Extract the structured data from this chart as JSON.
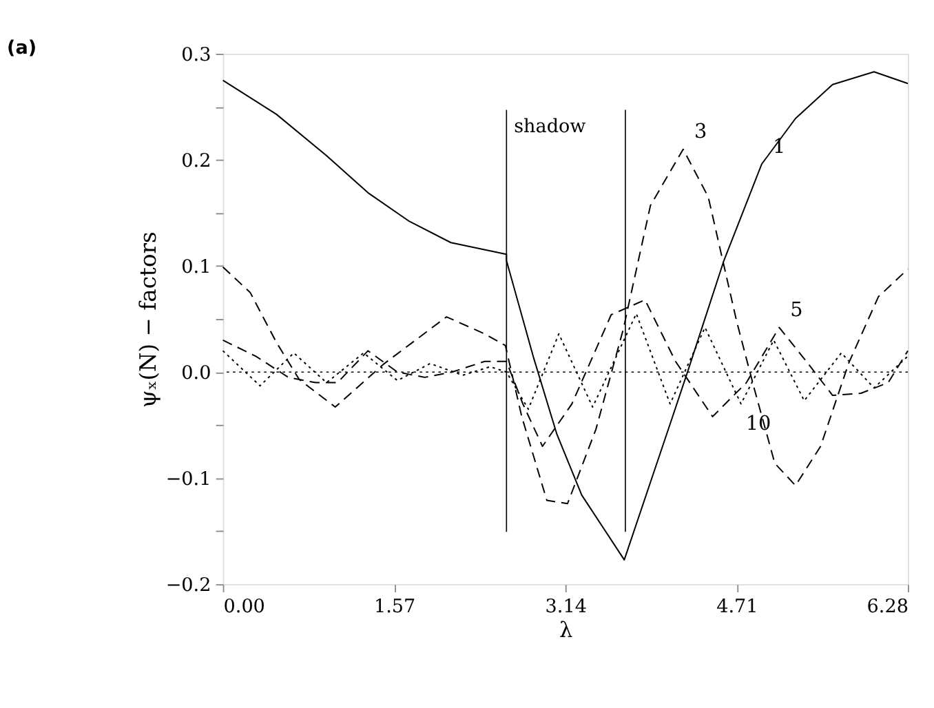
{
  "chart_data": {
    "type": "line",
    "title": "(a)",
    "xlabel": "λ",
    "ylabel": "ψₓ(N) − factors",
    "xlim": [
      0,
      6.28
    ],
    "ylim": [
      -0.2,
      0.3
    ],
    "xticks": [
      {
        "value": 0,
        "label": "0.00"
      },
      {
        "value": 1.57,
        "label": "1.57"
      },
      {
        "value": 3.14,
        "label": "3.14"
      },
      {
        "value": 4.71,
        "label": "4.71"
      },
      {
        "value": 6.28,
        "label": "6.28"
      }
    ],
    "yticks": [
      {
        "value": -0.2,
        "label": "−0.2"
      },
      {
        "value": -0.15,
        "label": null
      },
      {
        "value": -0.1,
        "label": "−0.1"
      },
      {
        "value": -0.05,
        "label": null
      },
      {
        "value": 0,
        "label": "0.0"
      },
      {
        "value": 0.05,
        "label": null
      },
      {
        "value": 0.1,
        "label": "0.1"
      },
      {
        "value": 0.15,
        "label": null
      },
      {
        "value": 0.2,
        "label": "0.2"
      },
      {
        "value": 0.25,
        "label": null
      },
      {
        "value": 0.3,
        "label": "0.3"
      }
    ],
    "grid": false,
    "series": [
      {
        "color": "#000000",
        "line_style": "solid",
        "x": [
          0,
          0.49,
          0.95,
          1.33,
          1.71,
          2.09,
          2.6,
          2.6,
          2.85,
          3.06,
          3.29,
          3.68,
          4.11,
          4.26,
          4.59,
          4.94,
          5.25,
          5.59,
          5.97,
          6.28
        ],
        "values": [
          0.275,
          0.243,
          0.204,
          0.169,
          0.142,
          0.122,
          0.111,
          0.105,
          0.013,
          -0.058,
          -0.116,
          -0.177,
          -0.046,
          0.0,
          0.104,
          0.196,
          0.239,
          0.271,
          0.283,
          0.272
        ]
      },
      {
        "color": "#000000",
        "line_style": "dashed",
        "x": [
          0,
          0.25,
          0.49,
          0.7,
          1.03,
          1.48,
          2.05,
          2.4,
          2.59,
          2.74,
          2.97,
          3.16,
          3.42,
          3.67,
          3.92,
          4.22,
          4.45,
          4.71,
          4.87,
          5.06,
          5.25,
          5.48,
          5.74,
          6.01,
          6.28
        ],
        "values": [
          0.099,
          0.075,
          0.028,
          -0.007,
          -0.033,
          0.008,
          0.052,
          0.036,
          0.025,
          -0.042,
          -0.121,
          -0.124,
          -0.054,
          0.04,
          0.157,
          0.21,
          0.165,
          0.048,
          -0.015,
          -0.086,
          -0.107,
          -0.07,
          0.009,
          0.071,
          0.097
        ]
      },
      {
        "color": "#000000",
        "line_style": "dashed",
        "x": [
          0,
          0.3,
          0.6,
          0.85,
          1.05,
          1.33,
          1.6,
          1.85,
          2.1,
          2.4,
          2.6,
          2.75,
          2.93,
          3.2,
          3.56,
          3.87,
          4.15,
          4.49,
          4.8,
          5.1,
          5.35,
          5.59,
          5.85,
          6.1,
          6.28
        ],
        "values": [
          0.03,
          0.015,
          -0.005,
          -0.01,
          -0.01,
          0.02,
          0.0,
          -0.005,
          0.0,
          0.01,
          0.01,
          -0.03,
          -0.07,
          -0.03,
          0.054,
          0.068,
          0.01,
          -0.042,
          -0.01,
          0.042,
          0.01,
          -0.022,
          -0.02,
          -0.01,
          0.02
        ]
      },
      {
        "color": "#000000",
        "line_style": "dotted",
        "x": [
          0,
          0.34,
          0.65,
          0.95,
          1.29,
          1.6,
          1.9,
          2.2,
          2.45,
          2.6,
          2.8,
          3.08,
          3.39,
          3.79,
          4.1,
          4.42,
          4.75,
          5.05,
          5.33,
          5.67,
          5.97,
          6.28
        ],
        "values": [
          0.02,
          -0.013,
          0.018,
          -0.01,
          0.018,
          -0.008,
          0.008,
          -0.003,
          0.005,
          0.0,
          -0.035,
          0.036,
          -0.033,
          0.055,
          -0.03,
          0.042,
          -0.03,
          0.03,
          -0.027,
          0.018,
          -0.015,
          0.015
        ]
      }
    ],
    "ref_lines": [
      {
        "axis": "y",
        "value": 0,
        "line_style": "dotted"
      },
      {
        "axis": "x",
        "value": 2.6,
        "label": "shadow"
      },
      {
        "axis": "x",
        "value": 3.69
      }
    ],
    "annotations": [
      {
        "text": "1",
        "x": 4.94,
        "y": 0.196
      },
      {
        "text": "3",
        "x": 4.22,
        "y": 0.21
      },
      {
        "text": "5",
        "x": 5.1,
        "y": 0.042
      },
      {
        "text": "10",
        "x": 4.75,
        "y": -0.03
      }
    ]
  }
}
